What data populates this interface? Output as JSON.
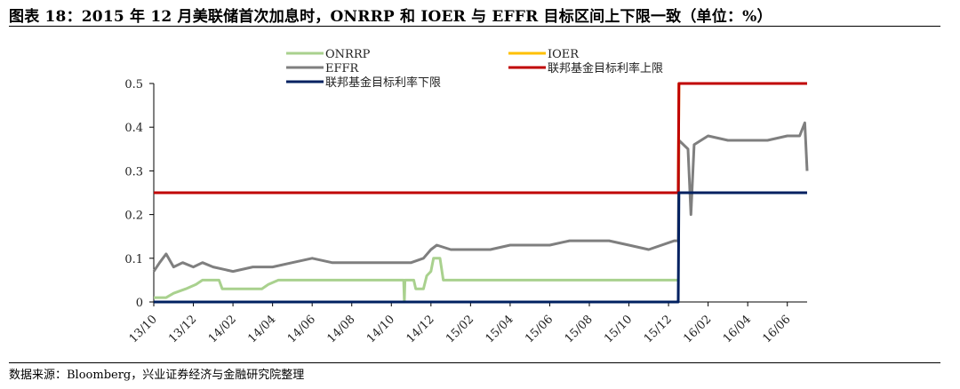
{
  "header": {
    "title": "图表 18：2015 年 12 月美联储首次加息时，ONRRP 和 IOER 与 EFFR 目标区间上下限一致（单位：%）"
  },
  "footer": {
    "source": "数据来源：Bloomberg，兴业证券经济与金融研究院整理"
  },
  "chart_data": {
    "type": "line",
    "title": "",
    "xlabel": "",
    "ylabel": "",
    "ylim": [
      0,
      0.5
    ],
    "yticks": [
      0,
      0.1,
      0.2,
      0.3,
      0.4,
      0.5
    ],
    "ytick_labels": [
      "0",
      "0.1",
      "0.2",
      "0.3",
      "0.4",
      "0.5"
    ],
    "xlim": [
      "2013-10",
      "2016-07"
    ],
    "xtick_labels": [
      "13/10",
      "13/12",
      "14/02",
      "14/04",
      "14/06",
      "14/08",
      "14/10",
      "14/12",
      "15/02",
      "15/04",
      "15/06",
      "15/08",
      "15/10",
      "15/12",
      "16/02",
      "16/04",
      "16/06"
    ],
    "grid": false,
    "legend": "top",
    "series": [
      {
        "name": "ONRRP",
        "color": "#a9d18e",
        "points": [
          [
            "2013-10",
            0.01
          ],
          [
            "2013-10-20",
            0.01
          ],
          [
            "2013-11",
            0.02
          ],
          [
            "2013-11-20",
            0.03
          ],
          [
            "2013-12-05",
            0.04
          ],
          [
            "2013-12-15",
            0.05
          ],
          [
            "2014-01-10",
            0.05
          ],
          [
            "2014-01-15",
            0.03
          ],
          [
            "2014-03-15",
            0.03
          ],
          [
            "2014-03-25",
            0.04
          ],
          [
            "2014-04-10",
            0.05
          ],
          [
            "2014-10-20",
            0.05
          ],
          [
            "2014-10-21",
            0.0
          ],
          [
            "2014-10-22",
            0.05
          ],
          [
            "2014-11-05",
            0.05
          ],
          [
            "2014-11-08",
            0.03
          ],
          [
            "2014-11-20",
            0.03
          ],
          [
            "2014-11-25",
            0.06
          ],
          [
            "2014-12-01",
            0.07
          ],
          [
            "2014-12-05",
            0.1
          ],
          [
            "2014-12-15",
            0.1
          ],
          [
            "2014-12-20",
            0.05
          ],
          [
            "2015-12-16",
            0.05
          ]
        ]
      },
      {
        "name": "IOER",
        "color": "#ffc000",
        "points": [
          [
            "2013-10",
            0.25
          ],
          [
            "2015-12-16",
            0.25
          ],
          [
            "2015-12-17",
            0.5
          ],
          [
            "2016-07",
            0.5
          ]
        ]
      },
      {
        "name": "EFFR",
        "color": "#7f7f7f",
        "points": [
          [
            "2013-10",
            0.07
          ],
          [
            "2013-10-10",
            0.09
          ],
          [
            "2013-10-20",
            0.11
          ],
          [
            "2013-11",
            0.08
          ],
          [
            "2013-11-15",
            0.09
          ],
          [
            "2013-12",
            0.08
          ],
          [
            "2013-12-15",
            0.09
          ],
          [
            "2014-01",
            0.08
          ],
          [
            "2014-02",
            0.07
          ],
          [
            "2014-03",
            0.08
          ],
          [
            "2014-04",
            0.08
          ],
          [
            "2014-05",
            0.09
          ],
          [
            "2014-06",
            0.1
          ],
          [
            "2014-07",
            0.09
          ],
          [
            "2014-08",
            0.09
          ],
          [
            "2014-09",
            0.09
          ],
          [
            "2014-10",
            0.09
          ],
          [
            "2014-11",
            0.09
          ],
          [
            "2014-11-20",
            0.1
          ],
          [
            "2014-12",
            0.12
          ],
          [
            "2014-12-10",
            0.13
          ],
          [
            "2015-01",
            0.12
          ],
          [
            "2015-02",
            0.12
          ],
          [
            "2015-03",
            0.12
          ],
          [
            "2015-04",
            0.13
          ],
          [
            "2015-05",
            0.13
          ],
          [
            "2015-06",
            0.13
          ],
          [
            "2015-07",
            0.14
          ],
          [
            "2015-08",
            0.14
          ],
          [
            "2015-09",
            0.14
          ],
          [
            "2015-10",
            0.13
          ],
          [
            "2015-11",
            0.12
          ],
          [
            "2015-12-10",
            0.14
          ],
          [
            "2015-12-16",
            0.14
          ],
          [
            "2015-12-17",
            0.37
          ],
          [
            "2015-12-31",
            0.35
          ],
          [
            "2016-01-05",
            0.2
          ],
          [
            "2016-01-10",
            0.36
          ],
          [
            "2016-02",
            0.38
          ],
          [
            "2016-03",
            0.37
          ],
          [
            "2016-04",
            0.37
          ],
          [
            "2016-05",
            0.37
          ],
          [
            "2016-06",
            0.38
          ],
          [
            "2016-06-20",
            0.38
          ],
          [
            "2016-06-28",
            0.41
          ],
          [
            "2016-07",
            0.3
          ]
        ]
      },
      {
        "name": "联邦基金目标利率上限",
        "color": "#c00000",
        "points": [
          [
            "2013-10",
            0.25
          ],
          [
            "2015-12-16",
            0.25
          ],
          [
            "2015-12-17",
            0.5
          ],
          [
            "2016-07",
            0.5
          ]
        ]
      },
      {
        "name": "联邦基金目标利率下限",
        "color": "#002060",
        "points": [
          [
            "2013-10",
            0.0
          ],
          [
            "2015-12-16",
            0.0
          ],
          [
            "2015-12-17",
            0.25
          ],
          [
            "2016-07",
            0.25
          ]
        ]
      }
    ]
  }
}
